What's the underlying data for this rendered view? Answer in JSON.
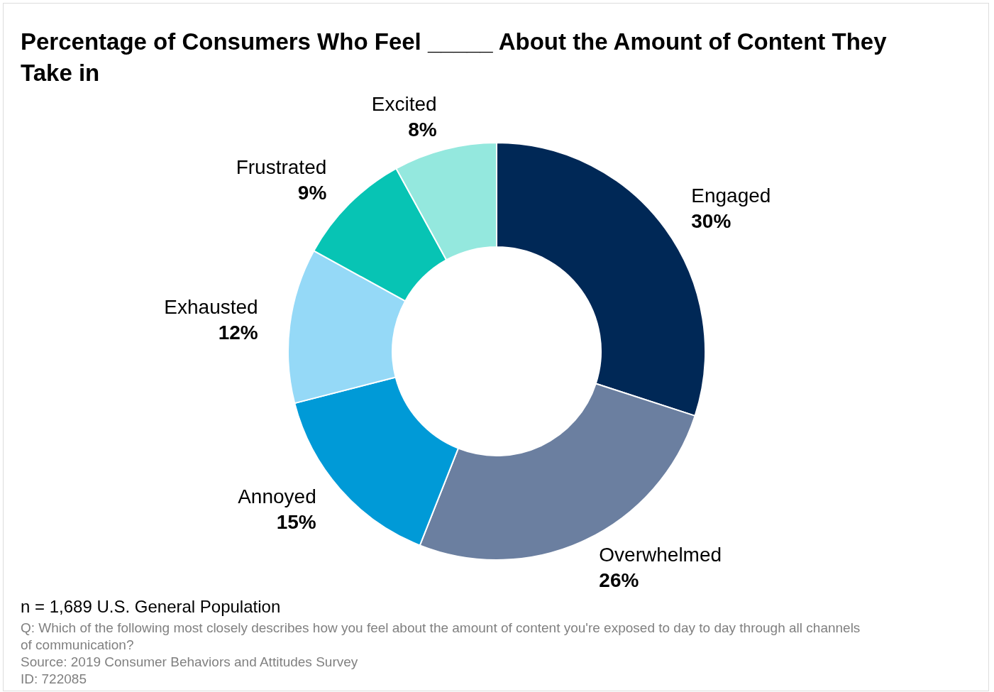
{
  "chart_data": {
    "type": "donut",
    "title": "Percentage of Consumers Who Feel _____ About the Amount of Content They Take in",
    "categories": [
      "Engaged",
      "Overwhelmed",
      "Annoyed",
      "Exhausted",
      "Frustrated",
      "Excited"
    ],
    "values": [
      30,
      26,
      15,
      12,
      9,
      8
    ],
    "value_labels": [
      "30%",
      "26%",
      "15%",
      "12%",
      "9%",
      "8%"
    ],
    "colors": [
      "#002856",
      "#6b7fa0",
      "#009ad7",
      "#95d9f7",
      "#07c4b4",
      "#94e8de"
    ],
    "legend": false,
    "annotations": [
      "n = 1,689 U.S. General Population",
      "Q: Which of the following most closely describes how you feel about the amount of content you're exposed to day to day through all channels of communication?",
      "Source: 2019 Consumer Behaviors and Attitudes Survey",
      "ID: 722085"
    ]
  }
}
